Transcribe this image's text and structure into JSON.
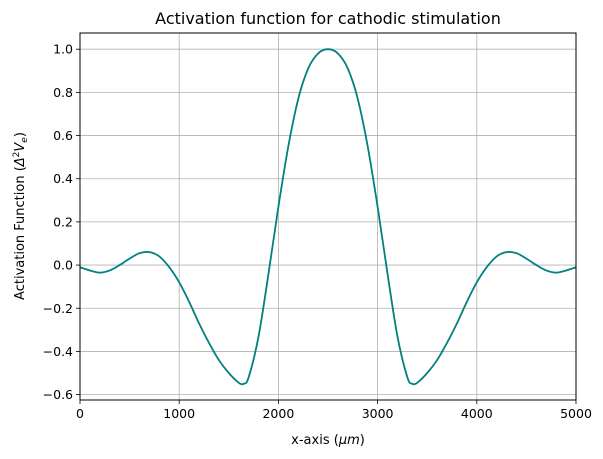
{
  "chart_data": {
    "type": "line",
    "title": "Activation function for cathodic stimulation",
    "xlabel": {
      "text": "x-axis (",
      "math": "μm",
      "suffix": ")"
    },
    "ylabel": {
      "text": "Activation Function (",
      "math": "Δ",
      "sup": "2",
      "math2": "V",
      "sub": "e",
      "suffix": ")"
    },
    "xlim": [
      0,
      5000
    ],
    "ylim": [
      -0.625,
      1.075
    ],
    "grid": true,
    "xticks": [
      0,
      1000,
      2000,
      3000,
      4000,
      5000
    ],
    "xtick_labels": [
      "0",
      "1000",
      "2000",
      "3000",
      "4000",
      "5000"
    ],
    "yticks": [
      -0.6,
      -0.4,
      -0.2,
      0.0,
      0.2,
      0.4,
      0.6,
      0.8,
      1.0
    ],
    "ytick_labels": [
      "−0.6",
      "−0.4",
      "−0.2",
      "0.0",
      "0.2",
      "0.4",
      "0.6",
      "0.8",
      "1.0"
    ],
    "series": [
      {
        "color": "#008080",
        "x": [
          0,
          100,
          200,
          300,
          400,
          500,
          600,
          700,
          800,
          900,
          1000,
          1100,
          1200,
          1300,
          1400,
          1500,
          1600,
          1650,
          1700,
          1800,
          1900,
          2000,
          2100,
          2200,
          2300,
          2400,
          2500,
          2600,
          2700,
          2800,
          2900,
          3000,
          3100,
          3200,
          3300,
          3350,
          3400,
          3500,
          3600,
          3700,
          3800,
          3900,
          4000,
          4100,
          4200,
          4300,
          4400,
          4500,
          4600,
          4700,
          4800,
          4900,
          5000
        ],
        "y": [
          -0.01,
          -0.025,
          -0.035,
          -0.025,
          0.0,
          0.03,
          0.055,
          0.06,
          0.04,
          -0.01,
          -0.08,
          -0.17,
          -0.27,
          -0.36,
          -0.44,
          -0.5,
          -0.545,
          -0.55,
          -0.52,
          -0.33,
          -0.04,
          0.27,
          0.55,
          0.77,
          0.91,
          0.98,
          1.0,
          0.98,
          0.91,
          0.77,
          0.55,
          0.27,
          -0.04,
          -0.33,
          -0.52,
          -0.55,
          -0.545,
          -0.5,
          -0.44,
          -0.36,
          -0.27,
          -0.17,
          -0.08,
          -0.01,
          0.04,
          0.06,
          0.055,
          0.03,
          0.0,
          -0.025,
          -0.035,
          -0.025,
          -0.01
        ]
      }
    ]
  }
}
